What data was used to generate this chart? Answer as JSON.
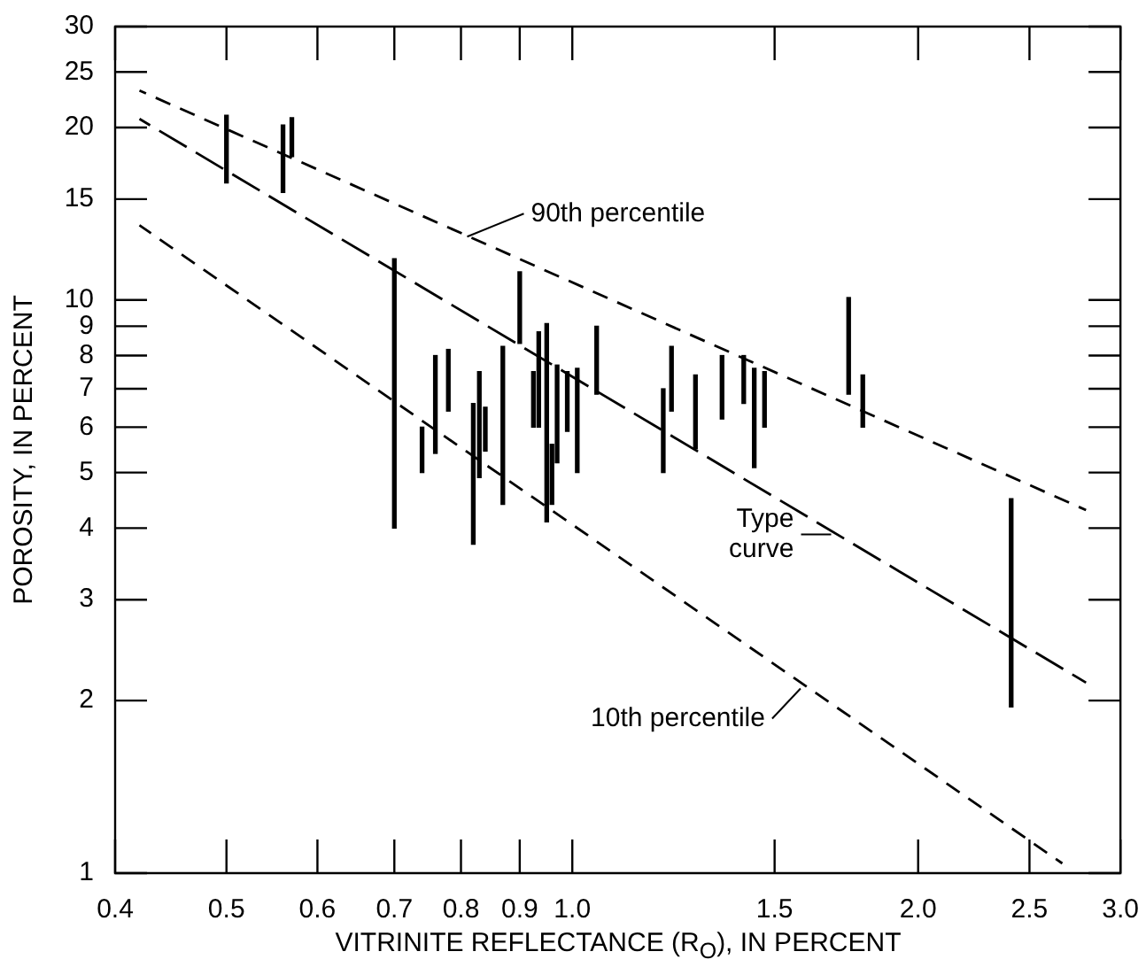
{
  "chart_data": {
    "type": "bar",
    "xlabel": "VITRINITE REFLECTANCE (R$_{O}$), IN PERCENT",
    "ylabel": "POROSITY, IN PERCENT",
    "log": "xy",
    "grid": false,
    "legend": false,
    "xlim": [
      0.4,
      3.0
    ],
    "xticks": [
      0.4,
      0.5,
      0.6,
      0.7,
      0.8,
      {
        "value": 0.9,
        "label": "0.9"
      },
      {
        "value": 1,
        "label": "1.0"
      },
      1.5,
      {
        "value": 2,
        "label": "2.0"
      },
      2.5,
      {
        "value": 3,
        "label": "3.0"
      }
    ],
    "ylim": [
      1,
      30
    ],
    "yticks": [
      1,
      2,
      3,
      4,
      5,
      6,
      7,
      8,
      9,
      10,
      15,
      20,
      25,
      30
    ],
    "annotations": [
      {
        "text": "90th percentile",
        "x": 0.81,
        "y": 12.9
      },
      {
        "text": "Type curve",
        "x": 1.68,
        "y": 3.9
      },
      {
        "text": "10th percentile",
        "x": 1.58,
        "y": 2.1
      }
    ],
    "series": [
      {
        "color": "#000000",
        "x": [
          0.5,
          0.56,
          0.57,
          0.7,
          0.74,
          0.76,
          0.78,
          0.82,
          0.83,
          0.84,
          0.87,
          0.9,
          0.925,
          0.935,
          0.95,
          0.96,
          0.97,
          0.99,
          1.01,
          1.05,
          1.2,
          1.22,
          1.28,
          1.35,
          1.41,
          1.44,
          1.47,
          1.74,
          1.79,
          2.41
        ],
        "base": [
          16,
          15.4,
          17.8,
          4,
          5,
          5.4,
          6.4,
          3.75,
          4.9,
          5.45,
          4.4,
          8.4,
          6,
          6,
          4.1,
          4.4,
          5.2,
          5.9,
          5,
          6.85,
          5,
          6.4,
          5.5,
          6.2,
          6.6,
          5.1,
          6,
          6.85,
          6,
          1.95
        ],
        "values": [
          5,
          4.8,
          3,
          7.8,
          1,
          2.6,
          1.8,
          2.85,
          2.6,
          1.05,
          3.9,
          2.8,
          1.5,
          2.8,
          5,
          1.2,
          2.5,
          1.6,
          2.6,
          2.15,
          2,
          1.9,
          1.9,
          1.8,
          1.4,
          2.5,
          1.5,
          3.25,
          1.4,
          2.55
        ]
      },
      {
        "type": "line",
        "color": "#000000",
        "line_style": "dashed",
        "marker": "none",
        "x": [
          0.42,
          2.8
        ],
        "values": [
          23.2,
          4.3
        ]
      },
      {
        "type": "line",
        "color": "#000000",
        "line_style": "dashed",
        "marker": "none",
        "x": [
          0.42,
          2.8
        ],
        "values": [
          20.7,
          2.15
        ]
      },
      {
        "type": "line",
        "color": "#000000",
        "line_style": "dashed",
        "marker": "none",
        "x": [
          0.42,
          2.67
        ],
        "values": [
          13.5,
          1.04
        ]
      }
    ]
  }
}
